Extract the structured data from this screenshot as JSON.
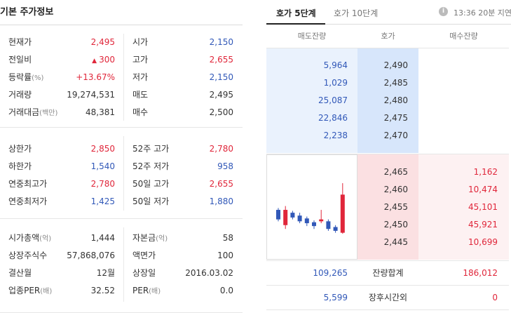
{
  "left": {
    "title": "기본 주가정보",
    "section1": [
      {
        "label": "현재가",
        "unit": "",
        "value": "2,495",
        "color": "red",
        "label2": "시가",
        "unit2": "",
        "value2": "2,150",
        "color2": "blue"
      },
      {
        "label": "전일비",
        "unit": "",
        "value": "300",
        "color": "red",
        "arrow": "▲",
        "label2": "고가",
        "unit2": "",
        "value2": "2,655",
        "color2": "red"
      },
      {
        "label": "등락률",
        "unit": "(%)",
        "value": "+13.67%",
        "color": "red",
        "label2": "저가",
        "unit2": "",
        "value2": "2,150",
        "color2": "blue"
      },
      {
        "label": "거래량",
        "unit": "",
        "value": "19,274,531",
        "color": "dark",
        "label2": "매도",
        "unit2": "",
        "value2": "2,495",
        "color2": "dark"
      },
      {
        "label": "거래대금",
        "unit": "(백만)",
        "value": "48,381",
        "color": "dark",
        "label2": "매수",
        "unit2": "",
        "value2": "2,500",
        "color2": "dark"
      }
    ],
    "section2": [
      {
        "label": "상한가",
        "unit": "",
        "value": "2,850",
        "color": "red",
        "label2": "52주 고가",
        "unit2": "",
        "value2": "2,780",
        "color2": "red"
      },
      {
        "label": "하한가",
        "unit": "",
        "value": "1,540",
        "color": "blue",
        "label2": "52주 저가",
        "unit2": "",
        "value2": "958",
        "color2": "blue"
      },
      {
        "label": "연중최고가",
        "unit": "",
        "value": "2,780",
        "color": "red",
        "label2": "50일 고가",
        "unit2": "",
        "value2": "2,655",
        "color2": "red"
      },
      {
        "label": "연중최저가",
        "unit": "",
        "value": "1,425",
        "color": "blue",
        "label2": "50일 저가",
        "unit2": "",
        "value2": "1,880",
        "color2": "blue"
      }
    ],
    "section3": [
      {
        "label": "시가총액",
        "unit": "(억)",
        "value": "1,444",
        "color": "dark",
        "label2": "자본금",
        "unit2": "(억)",
        "value2": "58",
        "color2": "dark"
      },
      {
        "label": "상장주식수",
        "unit": "",
        "value": "57,868,076",
        "color": "dark",
        "label2": "액면가",
        "unit2": "",
        "value2": "100",
        "color2": "dark"
      },
      {
        "label": "결산월",
        "unit": "",
        "value": "12월",
        "color": "dark",
        "label2": "상장일",
        "unit2": "",
        "value2": "2016.03.02",
        "color2": "dark"
      },
      {
        "label": "업종PER",
        "unit": "(배)",
        "value": "32.52",
        "color": "dark",
        "label2": "PER",
        "unit2": "(배)",
        "value2": "0.0",
        "color2": "dark"
      }
    ]
  },
  "right": {
    "tabs": [
      {
        "label": "호가 5단계",
        "active": true
      },
      {
        "label": "호가 10단계",
        "active": false
      }
    ],
    "info_icon": "i",
    "delay_text": "13:36 20분 지연",
    "headers": {
      "ask": "매도잔량",
      "price": "호가",
      "bid": "매수잔량"
    },
    "asks": [
      {
        "qty": "5,964",
        "price": "2,490"
      },
      {
        "qty": "1,029",
        "price": "2,485"
      },
      {
        "qty": "25,087",
        "price": "2,480"
      },
      {
        "qty": "22,846",
        "price": "2,475"
      },
      {
        "qty": "2,238",
        "price": "2,470"
      }
    ],
    "bids": [
      {
        "price": "2,465",
        "qty": "1,162"
      },
      {
        "price": "2,460",
        "qty": "10,474"
      },
      {
        "price": "2,455",
        "qty": "45,101"
      },
      {
        "price": "2,450",
        "qty": "45,921"
      },
      {
        "price": "2,445",
        "qty": "10,699"
      }
    ],
    "total": {
      "ask": "109,265",
      "label": "잔량합계",
      "bid": "186,012"
    },
    "after_hours": {
      "ask": "5,599",
      "label": "장후시간외",
      "bid": "0"
    }
  },
  "mini_chart": [
    {
      "dir": "down",
      "open": 2230,
      "close": 2180,
      "high": 2240,
      "low": 2170
    },
    {
      "dir": "up",
      "open": 2150,
      "close": 2230,
      "high": 2250,
      "low": 2130
    },
    {
      "dir": "down",
      "open": 2215,
      "close": 2190,
      "high": 2225,
      "low": 2180
    },
    {
      "dir": "down",
      "open": 2200,
      "close": 2170,
      "high": 2215,
      "low": 2160
    },
    {
      "dir": "down",
      "open": 2185,
      "close": 2160,
      "high": 2195,
      "low": 2145
    },
    {
      "dir": "down",
      "open": 2165,
      "close": 2145,
      "high": 2175,
      "low": 2130
    },
    {
      "dir": "up",
      "open": 2170,
      "close": 2180,
      "high": 2230,
      "low": 2160
    },
    {
      "dir": "down",
      "open": 2170,
      "close": 2130,
      "high": 2180,
      "low": 2120
    },
    {
      "dir": "down",
      "open": 2140,
      "close": 2120,
      "high": 2150,
      "low": 2110
    },
    {
      "dir": "up",
      "open": 2110,
      "close": 2310,
      "high": 2370,
      "low": 2105
    }
  ],
  "colors": {
    "up": "#e0263a",
    "down": "#3158b8"
  }
}
